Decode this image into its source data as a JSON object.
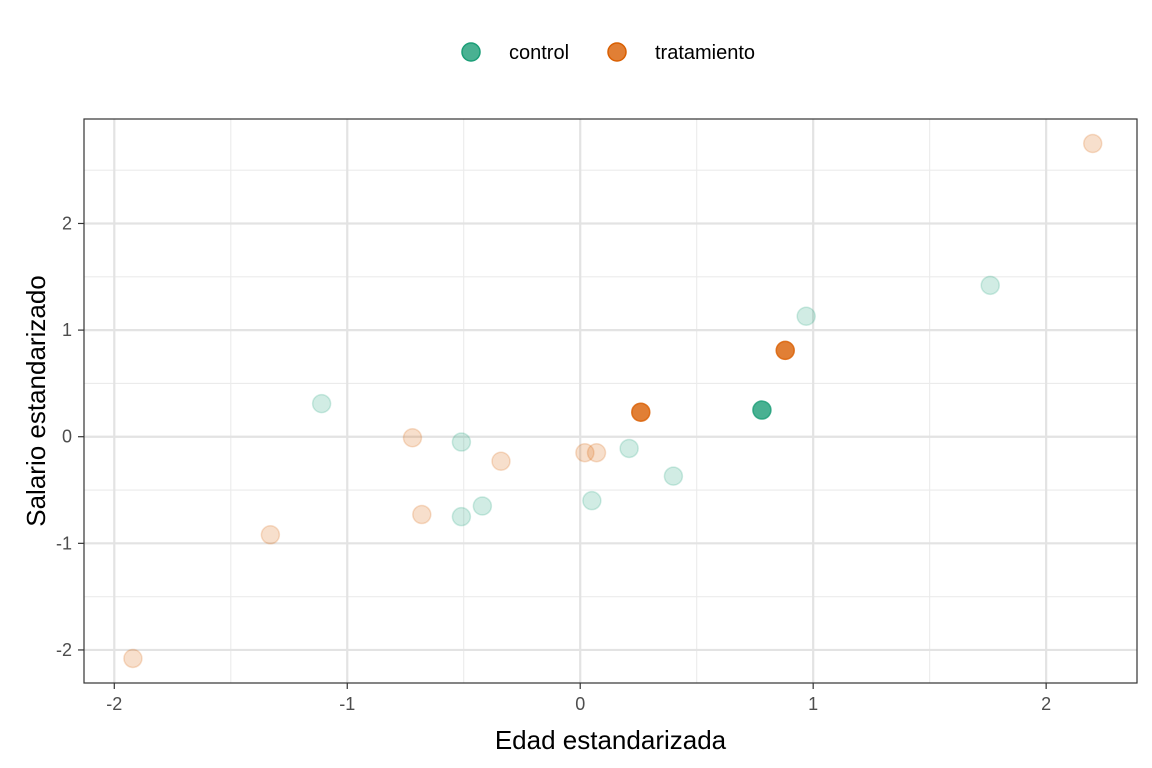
{
  "chart_data": {
    "type": "scatter",
    "xlabel": "Edad estandarizada",
    "ylabel": "Salario estandarizado",
    "xlim": [
      -2.13,
      2.39
    ],
    "ylim": [
      -2.31,
      2.98
    ],
    "x_ticks": [
      -2,
      -1,
      0,
      1,
      2
    ],
    "x_tick_labels": [
      "-2",
      "-1",
      "0",
      "1",
      "2"
    ],
    "y_ticks": [
      -2,
      -1,
      0,
      1,
      2
    ],
    "y_tick_labels": [
      "-2",
      "-1",
      "0",
      "1",
      "2"
    ],
    "grid": true,
    "legend_position": "top",
    "series": [
      {
        "name": "control",
        "color": "#1b9e77",
        "points": [
          {
            "x": 0.78,
            "y": 0.25,
            "highlighted": true
          },
          {
            "x": -1.11,
            "y": 0.31,
            "highlighted": false
          },
          {
            "x": -0.51,
            "y": -0.05,
            "highlighted": false
          },
          {
            "x": -0.51,
            "y": -0.75,
            "highlighted": false
          },
          {
            "x": -0.42,
            "y": -0.65,
            "highlighted": false
          },
          {
            "x": 0.05,
            "y": -0.6,
            "highlighted": false
          },
          {
            "x": 0.21,
            "y": -0.11,
            "highlighted": false
          },
          {
            "x": 0.4,
            "y": -0.37,
            "highlighted": false
          },
          {
            "x": 0.97,
            "y": 1.13,
            "highlighted": false
          },
          {
            "x": 1.76,
            "y": 1.42,
            "highlighted": false
          }
        ]
      },
      {
        "name": "tratamiento",
        "color": "#d95f02",
        "points": [
          {
            "x": 0.26,
            "y": 0.23,
            "highlighted": true
          },
          {
            "x": 0.88,
            "y": 0.81,
            "highlighted": true
          },
          {
            "x": -1.92,
            "y": -2.08,
            "highlighted": false
          },
          {
            "x": -1.33,
            "y": -0.92,
            "highlighted": false
          },
          {
            "x": -0.72,
            "y": -0.01,
            "highlighted": false
          },
          {
            "x": -0.68,
            "y": -0.73,
            "highlighted": false
          },
          {
            "x": -0.34,
            "y": -0.23,
            "highlighted": false
          },
          {
            "x": 0.02,
            "y": -0.15,
            "highlighted": false
          },
          {
            "x": 0.07,
            "y": -0.15,
            "highlighted": false
          },
          {
            "x": 2.2,
            "y": 2.75,
            "highlighted": false
          }
        ]
      }
    ]
  }
}
